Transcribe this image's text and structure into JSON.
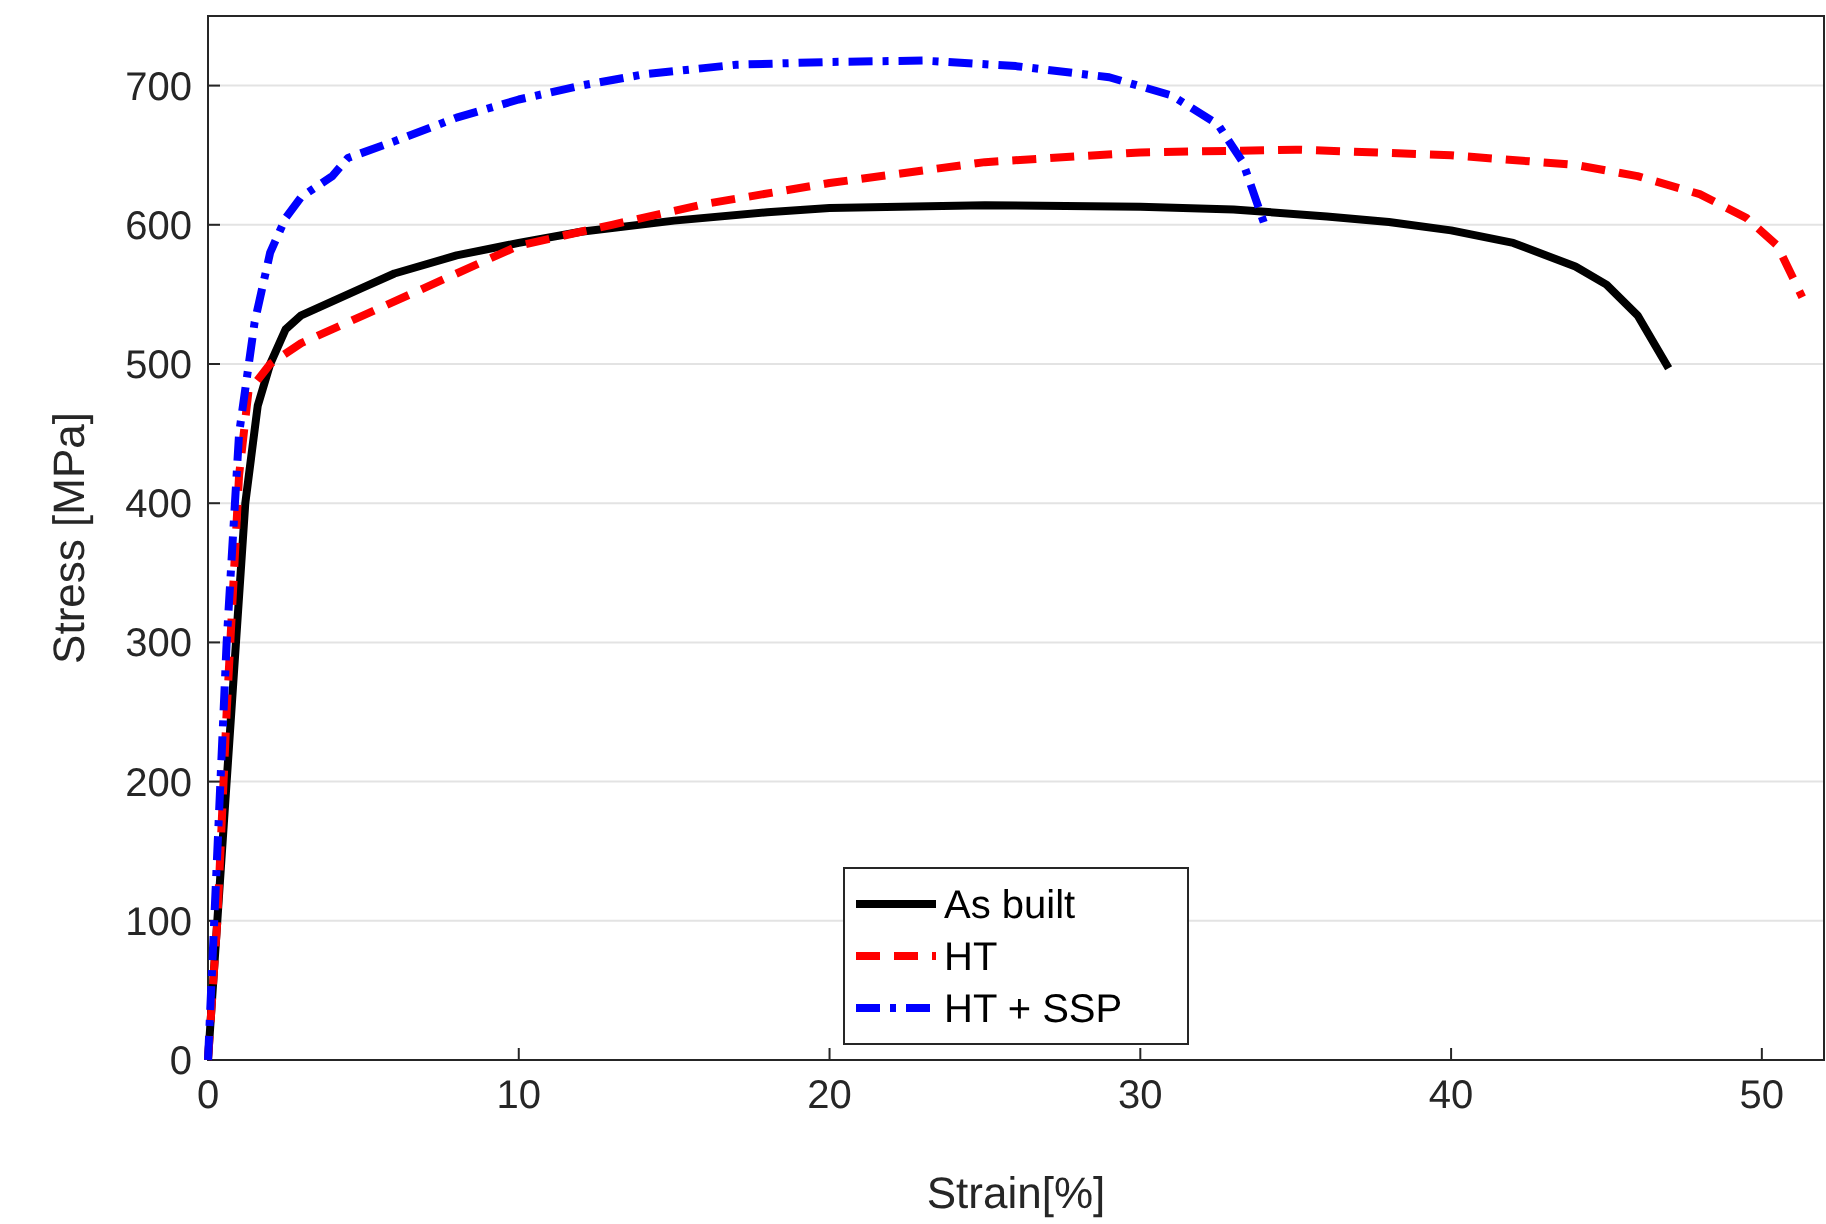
{
  "chart_data": {
    "type": "line",
    "xlabel": "Strain[%]",
    "ylabel": "Stress [MPa]",
    "xlim": [
      0,
      52
    ],
    "ylim": [
      0,
      750
    ],
    "xticks": [
      0,
      10,
      20,
      30,
      40,
      50
    ],
    "yticks": [
      0,
      100,
      200,
      300,
      400,
      500,
      600,
      700
    ],
    "grid": "y",
    "legend": "bottom",
    "marker": "none",
    "series": [
      {
        "name": "As built",
        "color": "#000000",
        "line_style": "solid",
        "x": [
          0,
          0.3,
          0.6,
          0.9,
          1.2,
          1.6,
          2,
          2.5,
          3,
          4,
          5,
          6,
          8,
          10,
          12,
          15,
          18,
          20,
          25,
          30,
          33,
          36,
          38,
          40,
          42,
          44,
          45,
          46,
          47
        ],
        "values": [
          0,
          100,
          200,
          300,
          400,
          470,
          500,
          525,
          535,
          545,
          555,
          565,
          578,
          587,
          595,
          603,
          609,
          612,
          614,
          613,
          611,
          606,
          602,
          596,
          587,
          570,
          557,
          535,
          497
        ]
      },
      {
        "name": "HT",
        "color": "#ff0000",
        "line_style": "dashed",
        "x": [
          0,
          0.3,
          0.6,
          1,
          1.3,
          2,
          3,
          5,
          8,
          10,
          13,
          16,
          20,
          25,
          30,
          35,
          40,
          44,
          46,
          48,
          49.5,
          50.5,
          51.3
        ],
        "values": [
          0,
          100,
          250,
          420,
          480,
          500,
          515,
          535,
          565,
          585,
          600,
          615,
          630,
          645,
          652,
          654,
          650,
          643,
          635,
          622,
          605,
          585,
          548
        ]
      },
      {
        "name": "HT + SSP",
        "color": "#0000ff",
        "line_style": "dashdot",
        "x": [
          0,
          0.3,
          0.6,
          1,
          1.5,
          2,
          2.5,
          3,
          4,
          4.5,
          6,
          8,
          10,
          12,
          14,
          17,
          20,
          23,
          26,
          29,
          31,
          32.5,
          33.3,
          34
        ],
        "values": [
          0,
          150,
          300,
          450,
          530,
          580,
          605,
          620,
          635,
          648,
          660,
          677,
          690,
          700,
          708,
          715,
          717,
          718,
          714,
          706,
          693,
          672,
          645,
          600
        ]
      }
    ]
  }
}
